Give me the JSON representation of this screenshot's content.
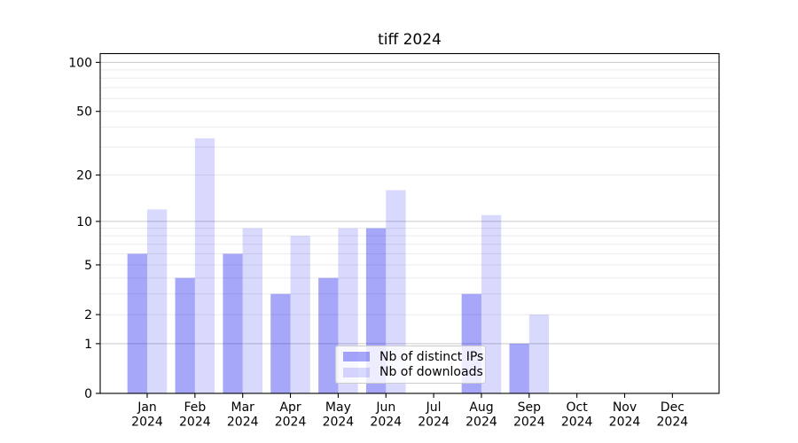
{
  "chart_data": {
    "type": "bar",
    "title": "tiff 2024",
    "categories": [
      "Jan 2024",
      "Feb 2024",
      "Mar 2024",
      "Apr 2024",
      "May 2024",
      "Jun 2024",
      "Jul 2024",
      "Aug 2024",
      "Sep 2024",
      "Oct 2024",
      "Nov 2024",
      "Dec 2024"
    ],
    "series": [
      {
        "name": "Nb of distinct IPs",
        "color_hex": "#0000f0",
        "alpha": 0.345,
        "values": [
          6,
          4,
          6,
          3,
          4,
          9,
          0,
          3,
          1,
          0,
          0,
          0
        ]
      },
      {
        "name": "Nb of downloads",
        "color_hex": "#0000f0",
        "alpha": 0.15,
        "values": [
          12,
          34,
          9,
          8,
          9,
          16,
          0,
          11,
          2,
          0,
          0,
          0
        ]
      }
    ],
    "yscale": "log1p",
    "yticks": [
      0,
      1,
      2,
      5,
      10,
      20,
      50,
      100
    ],
    "ylim": [
      0,
      113
    ],
    "grid": {
      "orientation": "horizontal",
      "major_values": [
        1,
        10,
        100
      ],
      "minor_values": [
        2,
        3,
        4,
        5,
        6,
        7,
        8,
        9,
        20,
        30,
        40,
        50,
        60,
        70,
        80,
        90
      ]
    },
    "legend_position": "lower center (inside plot)",
    "xlabel": "",
    "ylabel": ""
  },
  "colors": {
    "background": "#ffffff",
    "bar_ips_rendered": "#a8a8fa",
    "bar_downloads_rendered": "#d9d9fa",
    "grid_minor": "#ebebeb",
    "grid_major": "#c9c9c9",
    "axis": "#000000",
    "tick_label": "#000000",
    "legend_border": "#cccccc"
  }
}
